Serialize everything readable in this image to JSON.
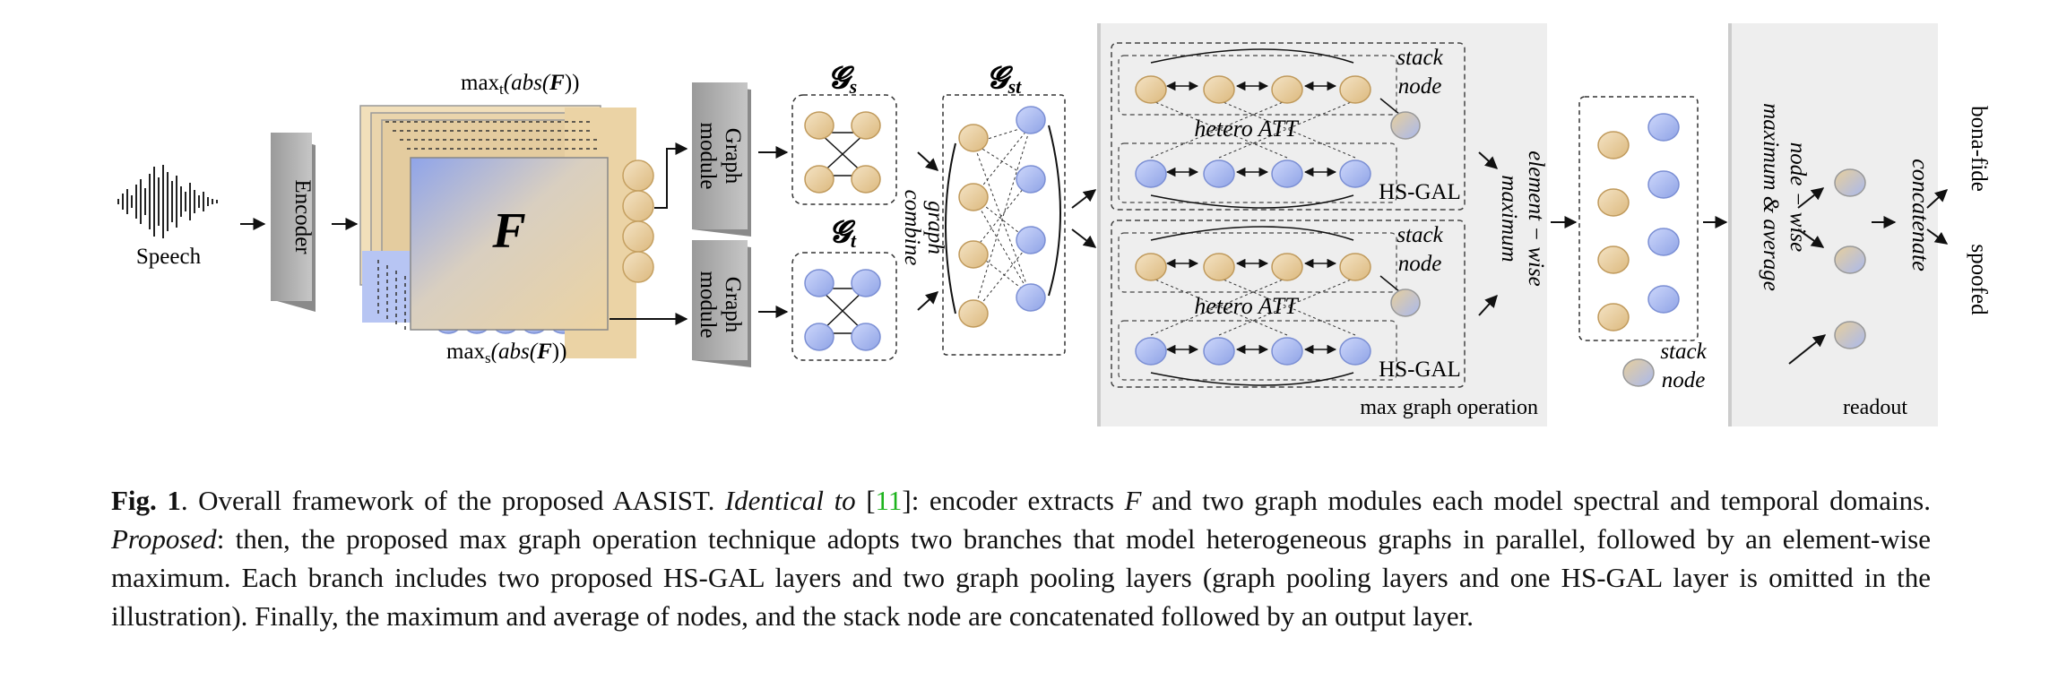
{
  "figure": {
    "speech_label": "Speech",
    "encoder_label": "Encoder",
    "F_label": "F",
    "max_t_label": "max",
    "max_t_sub": "t",
    "max_t_arg": "(abs(",
    "max_t_F": "F",
    "max_t_close": "))",
    "max_s_label": "max",
    "max_s_sub": "s",
    "max_s_arg": "(abs(",
    "max_s_F": "F",
    "max_s_close": "))",
    "graph_module_label_1": "Graph",
    "graph_module_label_2": "module",
    "gs_label": "𝓖",
    "gs_sub": "s",
    "gt_label": "𝓖",
    "gt_sub": "t",
    "gst_label": "𝓖",
    "gst_sub": "st",
    "graph_combine_1": "graph",
    "graph_combine_2": "combine",
    "stack_label_1": "stack",
    "stack_label_2": "node",
    "hetero_att": "hetero ATT",
    "hs_gal": "HS-GAL",
    "max_graph_operation": "max graph operation",
    "element_wise_1": "element − wise",
    "element_wise_2": "maximum",
    "node_wise_1": "node − wise",
    "node_wise_2": "maximum & average",
    "concatenate": "concatenate",
    "readout": "readout",
    "bona_fide": "bona-fide",
    "spoofed": "spoofed"
  },
  "caption": {
    "fig_label": "Fig. 1",
    "p1": ".  Overall framework of the proposed AASIST. ",
    "identical": "Identical to",
    "cite_open": " [",
    "cite_num": "11",
    "cite_close": "]",
    "p2": ": encoder extracts ",
    "F_var": "F",
    "p3": " and two graph modules each model spectral and temporal domains. ",
    "proposed": "Proposed",
    "p4": ": then, the proposed max graph operation technique adopts two branches that model heterogeneous graphs in parallel, followed by an element-wise maximum. Each branch includes two proposed HS-GAL layers and two graph pooling layers (graph pooling layers and one HS-GAL layer is omitted in the illustration). Finally, the maximum and average of nodes, and the stack node are concatenated followed by an output layer."
  },
  "colors": {
    "tan": "#ead2a3",
    "blue": "#aebdf0",
    "panel": "#eeeeee",
    "box": "#bdbdbd",
    "cite": "#1db31d"
  }
}
